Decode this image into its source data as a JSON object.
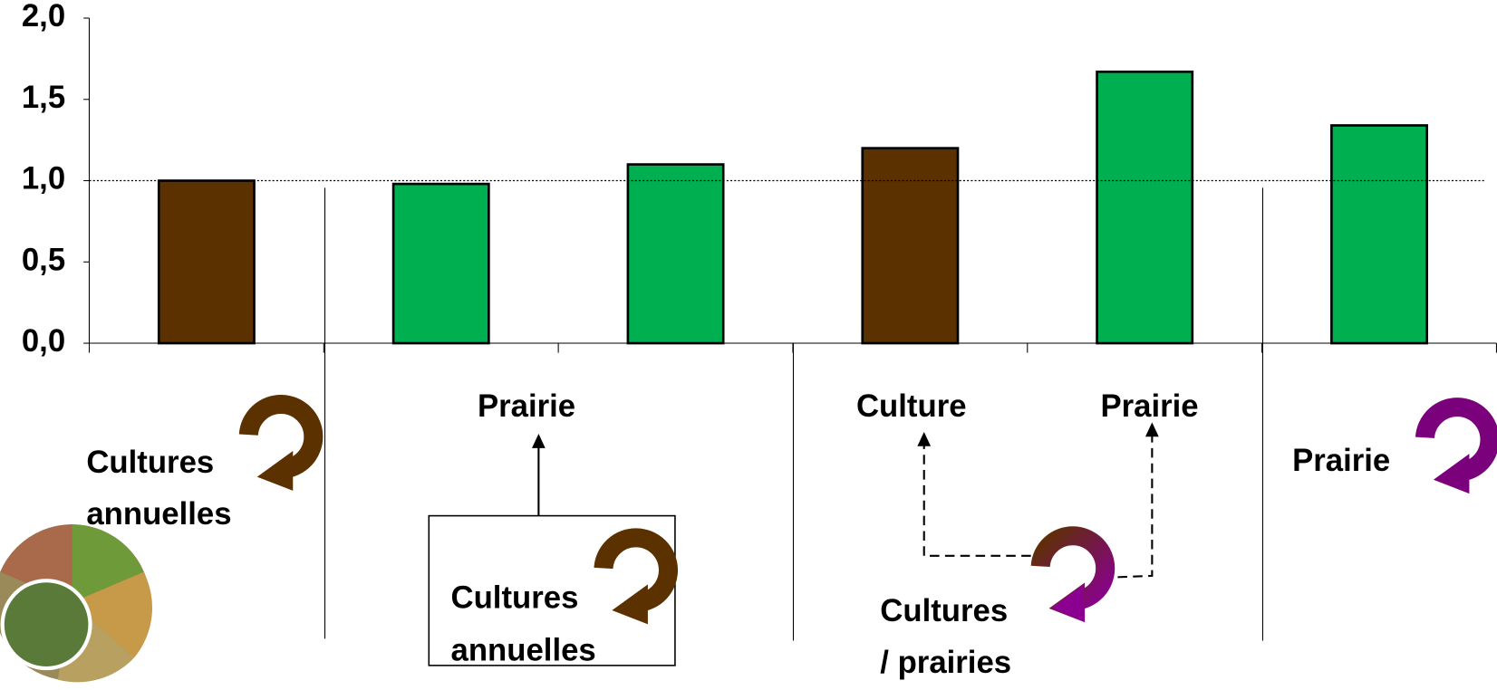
{
  "chart_data": {
    "type": "bar",
    "categories": [
      null,
      null,
      null,
      null,
      null,
      null
    ],
    "values": [
      1.0,
      0.98,
      1.1,
      1.2,
      1.67,
      1.34
    ],
    "colors": [
      "#5c3100",
      "#00b050",
      "#00b050",
      "#5c3100",
      "#00b050",
      "#00b050"
    ],
    "ylim": [
      0,
      2
    ],
    "yticks": [
      {
        "value": 0,
        "label": "0,0"
      },
      {
        "value": 0.5,
        "label": "0,5"
      },
      {
        "value": 1,
        "label": "1,0"
      },
      {
        "value": 1.5,
        "label": "1,5"
      },
      {
        "value": 2,
        "label": "2,0"
      }
    ],
    "reference_line": 1,
    "annotations": [
      "Cultures",
      "annuelles",
      "Prairie",
      "Cultures",
      "annuelles",
      "Culture",
      "Prairie",
      "Cultures",
      "/ prairies",
      "Prairie"
    ]
  }
}
